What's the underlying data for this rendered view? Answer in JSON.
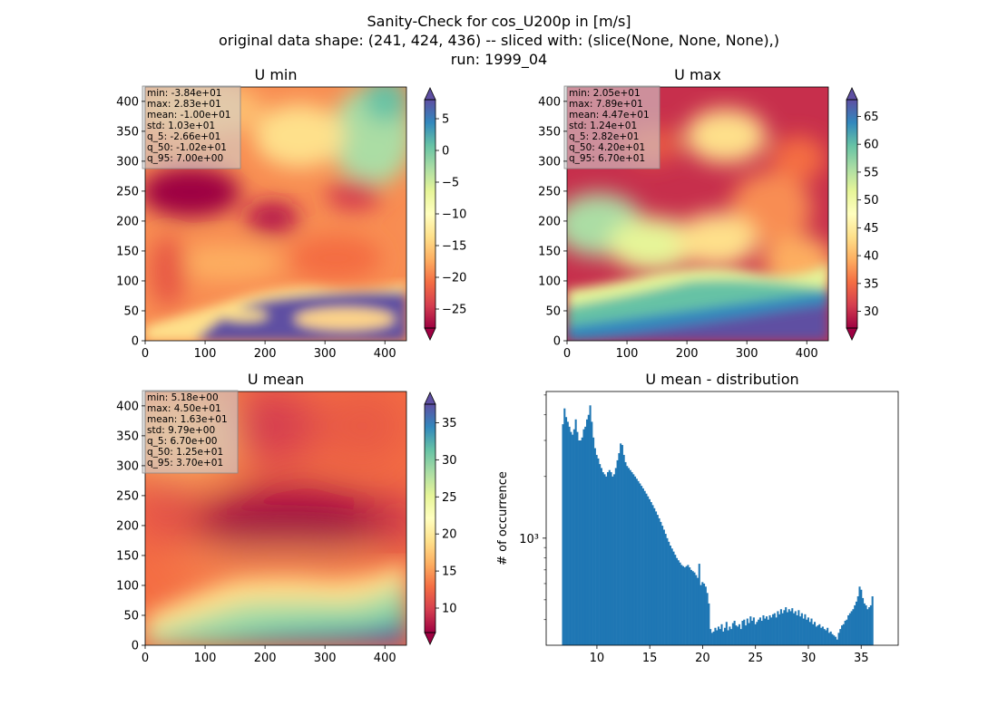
{
  "figure": {
    "title_lines": [
      "Sanity-Check for cos_U200p in [m/s]",
      "original data shape: (241, 424, 436) -- sliced with: (slice(None, None, None),)",
      "run: 1999_04"
    ]
  },
  "chart_data": [
    {
      "type": "heatmap",
      "title": "U min",
      "colormap": "Spectral",
      "xlim": [
        0,
        436
      ],
      "ylim": [
        0,
        424
      ],
      "xticks": [
        0,
        100,
        200,
        300,
        400
      ],
      "yticks": [
        0,
        50,
        100,
        150,
        200,
        250,
        300,
        350,
        400
      ],
      "colorbar_range": [
        -28,
        8
      ],
      "colorbar_ticks": [
        -25,
        -20,
        -15,
        -10,
        -5,
        0,
        5
      ],
      "colorbar_tick_labels": [
        "−25",
        "−20",
        "−15",
        "−10",
        "−5",
        "0",
        "5"
      ],
      "stats": [
        "min: -3.84e+01",
        "max: 2.83e+01",
        "mean: -1.00e+01",
        "std: 1.03e+01",
        "q_5: -2.66e+01",
        "q_50: -1.02e+01",
        "q_95: 7.00e+00"
      ]
    },
    {
      "type": "heatmap",
      "title": "U max",
      "colormap": "Spectral",
      "xlim": [
        0,
        436
      ],
      "ylim": [
        0,
        424
      ],
      "xticks": [
        0,
        100,
        200,
        300,
        400
      ],
      "yticks": [
        0,
        50,
        100,
        150,
        200,
        250,
        300,
        350,
        400
      ],
      "colorbar_range": [
        27,
        68
      ],
      "colorbar_ticks": [
        30,
        35,
        40,
        45,
        50,
        55,
        60,
        65
      ],
      "colorbar_tick_labels": [
        "30",
        "35",
        "40",
        "45",
        "50",
        "55",
        "60",
        "65"
      ],
      "stats": [
        "min: 2.05e+01",
        "max: 7.89e+01",
        "mean: 4.47e+01",
        "std: 1.24e+01",
        "q_5: 2.82e+01",
        "q_50: 4.20e+01",
        "q_95: 6.70e+01"
      ]
    },
    {
      "type": "heatmap",
      "title": "U mean",
      "colormap": "Spectral",
      "xlim": [
        0,
        436
      ],
      "ylim": [
        0,
        424
      ],
      "xticks": [
        0,
        100,
        200,
        300,
        400
      ],
      "yticks": [
        0,
        50,
        100,
        150,
        200,
        250,
        300,
        350,
        400
      ],
      "colorbar_range": [
        6.7,
        37.5
      ],
      "colorbar_ticks": [
        10,
        15,
        20,
        25,
        30,
        35
      ],
      "colorbar_tick_labels": [
        "10",
        "15",
        "20",
        "25",
        "30",
        "35"
      ],
      "stats": [
        "min: 5.18e+00",
        "max: 4.50e+01",
        "mean: 1.63e+01",
        "std: 9.79e+00",
        "q_5: 6.70e+00",
        "q_50: 1.25e+01",
        "q_95: 3.70e+01"
      ]
    },
    {
      "type": "bar",
      "subtype": "histogram",
      "title": "U mean - distribution",
      "xlabel": "",
      "ylabel": "# of occurrence",
      "yscale": "log",
      "xlim": [
        5.2,
        38.5
      ],
      "ylim": [
        300,
        5200
      ],
      "xticks": [
        10,
        15,
        20,
        25,
        30,
        35
      ],
      "yticks": [
        1000
      ],
      "ytick_labels": [
        "10³"
      ],
      "color": "#1f77b4",
      "bin_start": 6.7,
      "bin_width": 0.1517,
      "counts": [
        3600,
        4300,
        3900,
        3700,
        3500,
        3300,
        3200,
        3400,
        3800,
        3300,
        3000,
        3000,
        3100,
        3400,
        3500,
        3800,
        4000,
        4450,
        3700,
        3100,
        2750,
        2550,
        2450,
        2300,
        2200,
        2100,
        2050,
        2000,
        2100,
        2150,
        2100,
        2000,
        2050,
        2200,
        2400,
        2600,
        2900,
        2850,
        2550,
        2350,
        2250,
        2200,
        2150,
        2100,
        2050,
        2000,
        1950,
        1900,
        1850,
        1800,
        1750,
        1700,
        1650,
        1600,
        1550,
        1500,
        1450,
        1400,
        1350,
        1300,
        1250,
        1200,
        1150,
        1100,
        1050,
        1000,
        960,
        920,
        890,
        860,
        830,
        800,
        780,
        760,
        740,
        730,
        720,
        730,
        740,
        720,
        700,
        690,
        680,
        660,
        640,
        750,
        590,
        610,
        600,
        580,
        540,
        480,
        360,
        345,
        350,
        365,
        355,
        370,
        360,
        380,
        350,
        365,
        390,
        355,
        370,
        360,
        385,
        395,
        375,
        370,
        380,
        360,
        395,
        400,
        375,
        405,
        385,
        415,
        395,
        410,
        380,
        390,
        400,
        410,
        395,
        420,
        405,
        415,
        400,
        420,
        410,
        425,
        430,
        410,
        440,
        425,
        450,
        430,
        445,
        460,
        435,
        450,
        440,
        455,
        430,
        440,
        420,
        445,
        415,
        430,
        405,
        425,
        400,
        410,
        390,
        405,
        380,
        390,
        370,
        375,
        380,
        365,
        370,
        360,
        355,
        365,
        345,
        350,
        340,
        335,
        330,
        320,
        345,
        360,
        375,
        380,
        395,
        400,
        420,
        430,
        440,
        450,
        470,
        490,
        520,
        580,
        560,
        510,
        480,
        470,
        450,
        460,
        470,
        520
      ]
    }
  ]
}
